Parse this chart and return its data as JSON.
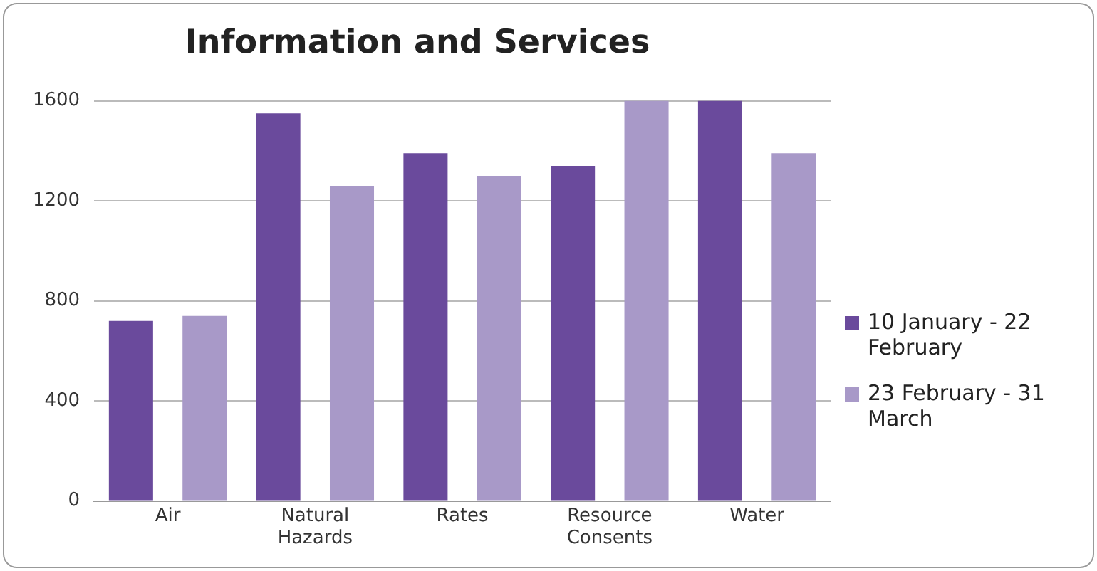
{
  "chart_data": {
    "type": "bar",
    "title": "Information and Services",
    "categories": [
      "Air",
      "Natural Hazards",
      "Rates",
      "Resource Consents",
      "Water"
    ],
    "series": [
      {
        "name": "10 January - 22 February",
        "color": "#6a4a9c",
        "values": [
          720,
          1550,
          1390,
          1340,
          1600
        ]
      },
      {
        "name": "23 February - 31 March",
        "color": "#a899c8",
        "values": [
          740,
          1260,
          1300,
          1600,
          1390
        ]
      }
    ],
    "ylim": [
      0,
      1600
    ],
    "yticks": [
      0,
      400,
      800,
      1200,
      1600
    ],
    "grid": "y",
    "legend": "right"
  }
}
